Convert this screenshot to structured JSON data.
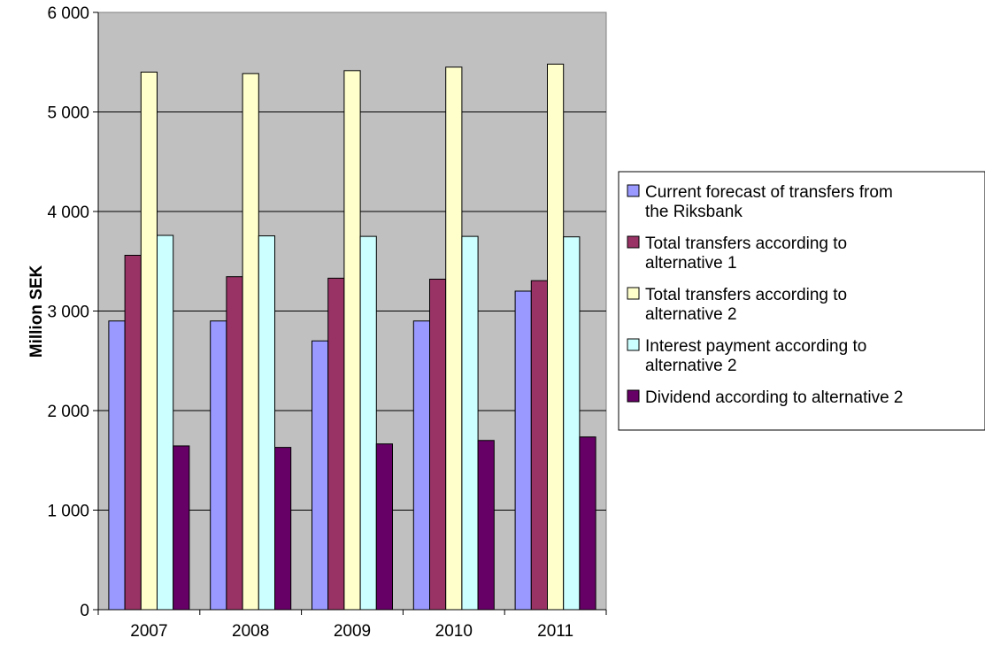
{
  "chart_data": {
    "type": "bar",
    "categories": [
      "2007",
      "2008",
      "2009",
      "2010",
      "2011"
    ],
    "series": [
      {
        "name": "Current forecast of transfers from the Riksbank",
        "name_lines": [
          "Current forecast of transfers from",
          "the Riksbank"
        ],
        "color": "#9999ff",
        "values": [
          2900,
          2900,
          2700,
          2900,
          3200
        ]
      },
      {
        "name": "Total transfers according to alternative 1",
        "name_lines": [
          "Total transfers according to",
          "alternative 1"
        ],
        "color": "#993366",
        "values": [
          3560,
          3345,
          3330,
          3320,
          3305
        ]
      },
      {
        "name": "Total transfers according to alternative 2",
        "name_lines": [
          "Total transfers according to",
          "alternative 2"
        ],
        "color": "#ffffcc",
        "values": [
          5400,
          5385,
          5415,
          5450,
          5480
        ]
      },
      {
        "name": "Interest payment according to alternative 2",
        "name_lines": [
          "Interest payment according to",
          "alternative 2"
        ],
        "color": "#ccffff",
        "values": [
          3760,
          3755,
          3750,
          3750,
          3745
        ]
      },
      {
        "name": "Dividend according to alternative 2",
        "name_lines": [
          "Dividend according to alternative 2"
        ],
        "color": "#660066",
        "values": [
          1645,
          1630,
          1665,
          1700,
          1735
        ]
      }
    ],
    "title": "",
    "xlabel": "",
    "ylabel": "Million SEK",
    "ylim": [
      0,
      6000
    ],
    "y_ticks": [
      0,
      1000,
      2000,
      3000,
      4000,
      5000,
      6000
    ],
    "y_tick_labels": [
      "0",
      "1 000",
      "2 000",
      "3 000",
      "4 000",
      "5 000",
      "6 000"
    ],
    "grid": true,
    "plot_background": "#c0c0c0",
    "legend_position": "right"
  }
}
